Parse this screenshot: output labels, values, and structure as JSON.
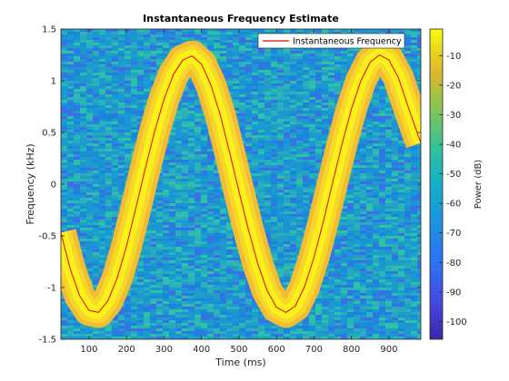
{
  "chart_data": {
    "type": "heatmap",
    "title": "Instantaneous Frequency Estimate",
    "xlabel": "Time (ms)",
    "ylabel": "Frequency (kHz)",
    "xlim": [
      25,
      985
    ],
    "ylim": [
      -1.5,
      1.5
    ],
    "xticks": [
      100,
      200,
      300,
      400,
      500,
      600,
      700,
      800,
      900
    ],
    "yticks": [
      -1.5,
      -1,
      -0.5,
      0,
      0.5,
      1,
      1.5
    ],
    "colorbar": {
      "label": "Power (dB)",
      "lim": [
        -106,
        -1
      ],
      "ticks": [
        -10,
        -20,
        -30,
        -40,
        -50,
        -60,
        -70,
        -80,
        -90,
        -100
      ]
    },
    "legend": {
      "position": "top-right",
      "entries": [
        "Instantaneous Frequency"
      ]
    },
    "series": [
      {
        "name": "Instantaneous Frequency",
        "color": "#e60000",
        "x": [
          25,
          50,
          75,
          100,
          125,
          150,
          175,
          200,
          225,
          250,
          275,
          300,
          325,
          350,
          375,
          400,
          425,
          450,
          475,
          500,
          525,
          550,
          575,
          600,
          625,
          650,
          675,
          700,
          725,
          750,
          775,
          800,
          825,
          850,
          875,
          900,
          925,
          950,
          975,
          985
        ],
        "y": [
          -0.47,
          -0.82,
          -1.08,
          -1.22,
          -1.24,
          -1.13,
          -0.91,
          -0.6,
          -0.23,
          0.15,
          0.51,
          0.82,
          1.06,
          1.2,
          1.24,
          1.16,
          0.96,
          0.67,
          0.31,
          -0.07,
          -0.44,
          -0.77,
          -1.03,
          -1.19,
          -1.24,
          -1.18,
          -0.99,
          -0.71,
          -0.36,
          0.02,
          0.39,
          0.73,
          1.0,
          1.18,
          1.25,
          1.2,
          1.03,
          0.76,
          0.5,
          0.4
        ]
      }
    ]
  },
  "colors": {
    "background_power": "#1f9fc8",
    "ridge_inner": "#fdf11c",
    "ridge_outer": "#f5c135",
    "line": "#e60000"
  }
}
